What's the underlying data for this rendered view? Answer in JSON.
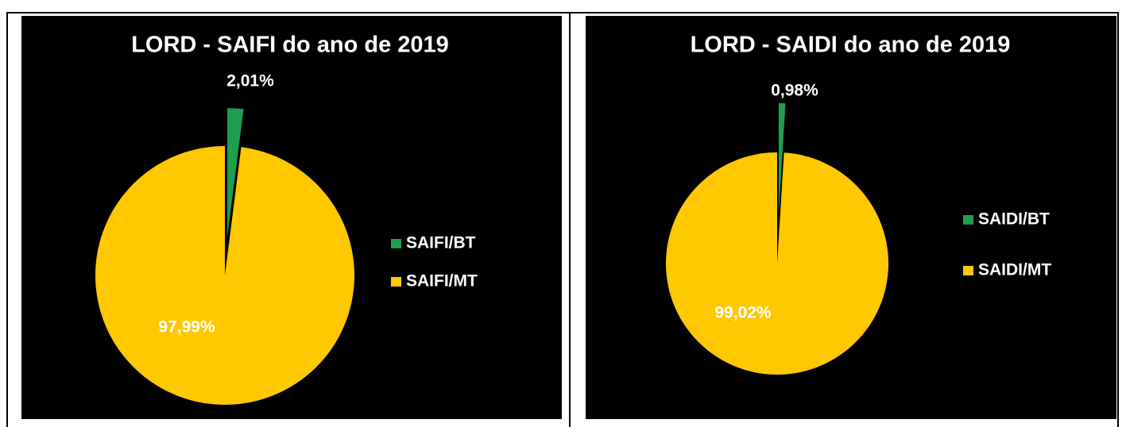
{
  "chart_data": [
    {
      "type": "pie",
      "title": "LORD - SAIFI do ano de 2019",
      "categories": [
        "SAIFI/BT",
        "SAIFI/MT"
      ],
      "values": [
        2.01,
        97.99
      ],
      "value_labels": [
        "2,01%",
        "97,99%"
      ],
      "colors": [
        "#1e9e4e",
        "#ffc800"
      ],
      "legend": "right"
    },
    {
      "type": "pie",
      "title": "LORD - SAIDI do ano de 2019",
      "categories": [
        "SAIDI/BT",
        "SAIDI/MT"
      ],
      "values": [
        0.98,
        99.02
      ],
      "value_labels": [
        "0,98%",
        "99,02%"
      ],
      "colors": [
        "#1e9e4e",
        "#ffc800"
      ],
      "legend": "right"
    }
  ]
}
